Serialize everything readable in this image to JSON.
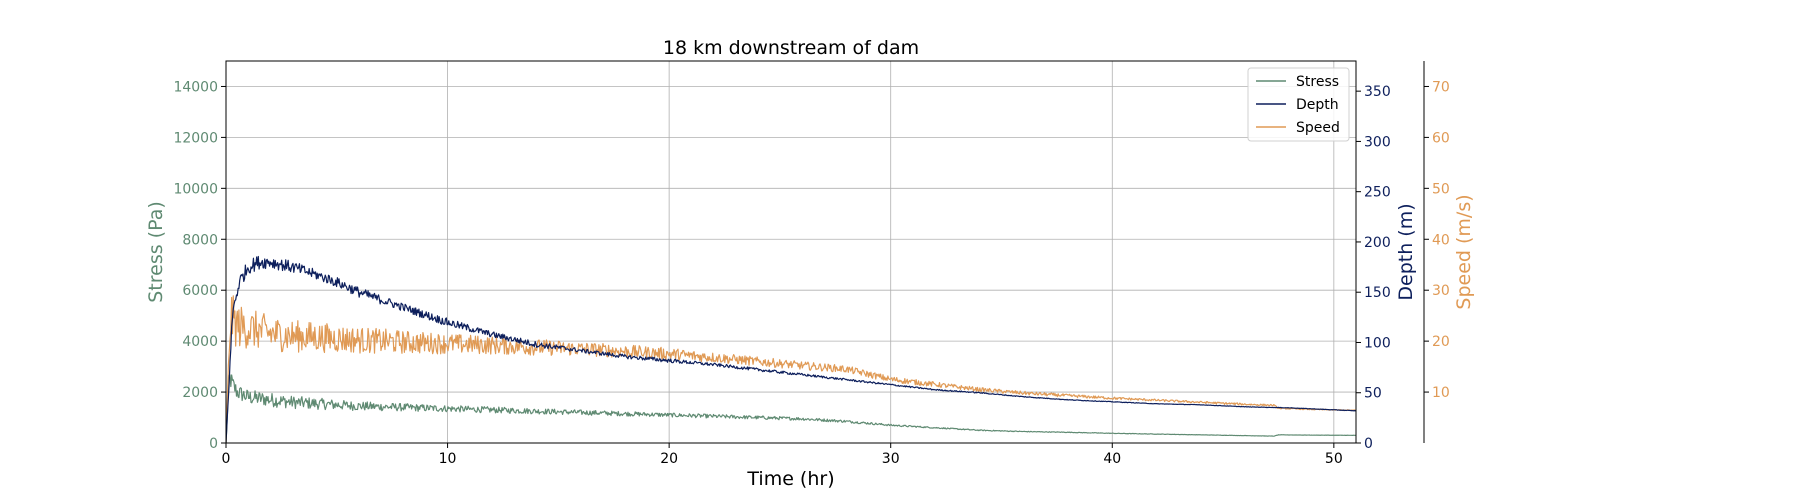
{
  "chart_data": {
    "type": "line",
    "title": "18 km downstream of dam",
    "xlabel": "Time (hr)",
    "xlim": [
      0,
      51
    ],
    "xticks": [
      0,
      10,
      20,
      30,
      40,
      50
    ],
    "grid": true,
    "legend_position": "top-right",
    "axes": {
      "stress": {
        "label": "Stress (Pa)",
        "color": "#5f8a72",
        "lim": [
          0,
          15000
        ],
        "ticks": [
          0,
          2000,
          4000,
          6000,
          8000,
          10000,
          12000,
          14000
        ]
      },
      "depth": {
        "label": "Depth (m)",
        "color": "#0d1f5c",
        "lim": [
          0,
          380
        ],
        "ticks": [
          0,
          50,
          100,
          150,
          200,
          250,
          300,
          350
        ]
      },
      "speed": {
        "label": "Speed (m/s)",
        "color": "#e09a55",
        "lim": [
          0,
          75
        ],
        "ticks": [
          10,
          20,
          30,
          40,
          50,
          60,
          70
        ]
      }
    },
    "series": [
      {
        "name": "Stress",
        "axis": "stress",
        "color": "#5f8a72",
        "x": [
          0,
          0.15,
          0.3,
          0.5,
          1,
          2,
          3,
          4,
          5,
          6,
          8,
          10,
          12,
          14,
          16,
          18,
          20,
          22,
          24,
          26,
          28,
          30,
          32,
          34,
          36,
          38,
          40,
          42,
          44,
          46,
          47.3,
          47.5,
          49,
          51
        ],
        "y": [
          0,
          2600,
          2300,
          2000,
          1800,
          1700,
          1600,
          1550,
          1500,
          1450,
          1400,
          1350,
          1300,
          1250,
          1200,
          1150,
          1100,
          1050,
          1000,
          950,
          850,
          700,
          600,
          500,
          450,
          420,
          380,
          350,
          320,
          290,
          270,
          320,
          310,
          300
        ],
        "noise": [
          0,
          400,
          350,
          320,
          300,
          280,
          250,
          230,
          200,
          180,
          150,
          130,
          120,
          110,
          100,
          90,
          80,
          75,
          70,
          60,
          50,
          35,
          25,
          20,
          15,
          12,
          10,
          8,
          6,
          5,
          5,
          5,
          4,
          3
        ]
      },
      {
        "name": "Depth",
        "axis": "depth",
        "color": "#0d1f5c",
        "x": [
          0,
          0.3,
          0.6,
          1,
          1.5,
          2,
          3,
          4,
          5,
          6,
          8,
          10,
          12,
          14,
          16,
          18,
          20,
          22,
          24,
          26,
          28,
          30,
          32,
          34,
          36,
          38,
          40,
          42,
          44,
          46,
          48,
          50,
          51
        ],
        "y": [
          0,
          130,
          160,
          175,
          180,
          180,
          175,
          168,
          160,
          150,
          135,
          120,
          108,
          98,
          92,
          86,
          82,
          78,
          73,
          68,
          63,
          58,
          53,
          50,
          46,
          43,
          41,
          39,
          38,
          36,
          35,
          33,
          32
        ],
        "noise": [
          0,
          8,
          7,
          7,
          7,
          6,
          6,
          5,
          5,
          5,
          4,
          4,
          3,
          3,
          2,
          2,
          2,
          1.5,
          1.5,
          1.2,
          1,
          0.8,
          0.6,
          0.5,
          0.4,
          0.3,
          0.3,
          0.2,
          0.2,
          0.2,
          0.2,
          0.2,
          0.2
        ]
      },
      {
        "name": "Speed",
        "axis": "speed",
        "color": "#e09a55",
        "x": [
          0,
          0.2,
          0.5,
          1,
          2,
          3,
          4,
          5,
          6,
          8,
          10,
          12,
          14,
          16,
          18,
          20,
          22,
          24,
          26,
          28,
          30,
          32,
          34,
          36,
          38,
          40,
          42,
          44,
          46,
          47.3,
          47.5,
          49,
          51
        ],
        "y": [
          0,
          25,
          23,
          22.5,
          21.5,
          21,
          20.8,
          20.5,
          20.2,
          19.8,
          19.5,
          19.2,
          18.8,
          18.5,
          18,
          17.5,
          16.8,
          16,
          15.2,
          14.5,
          12.5,
          11.5,
          10.5,
          9.8,
          9.3,
          8.8,
          8.4,
          8,
          7.6,
          7.4,
          6.8,
          6.6,
          6.4
        ],
        "noise": [
          0,
          5,
          4.5,
          4,
          3.5,
          3.2,
          3,
          2.8,
          2.6,
          2.3,
          2,
          1.8,
          1.6,
          1.4,
          1.3,
          1.2,
          1,
          0.9,
          0.8,
          0.7,
          0.6,
          0.5,
          0.4,
          0.35,
          0.3,
          0.25,
          0.2,
          0.2,
          0.2,
          0.15,
          0.1,
          0.1,
          0.1
        ]
      }
    ]
  }
}
